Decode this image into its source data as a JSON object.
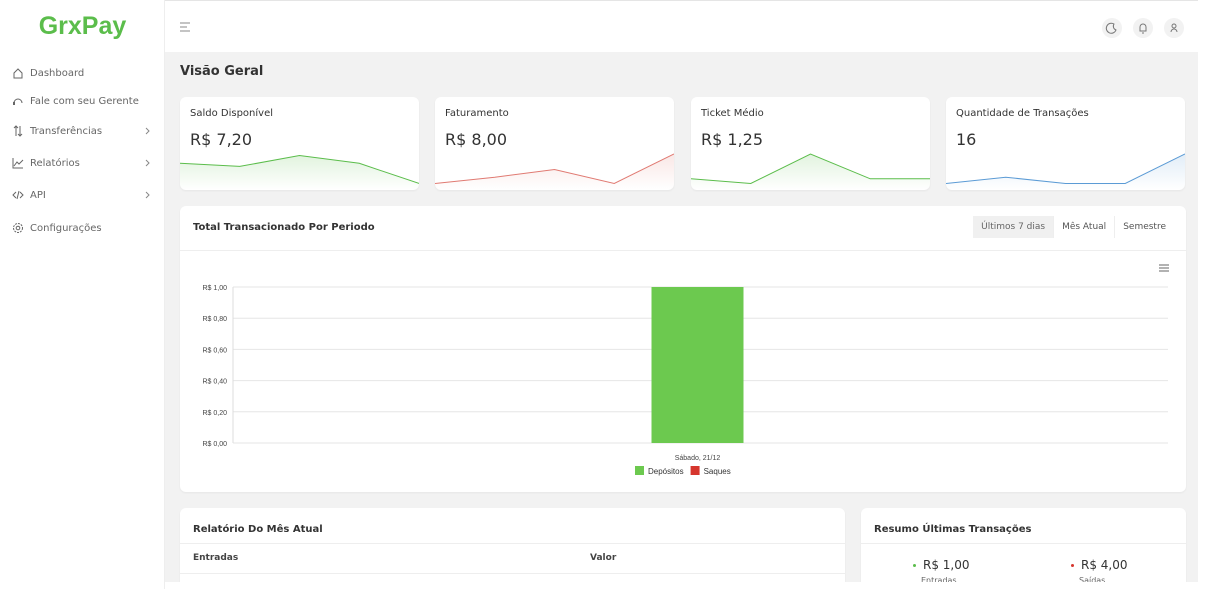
{
  "brand": "GrxPay",
  "nav": [
    "Dashboard",
    "Fale com seu Gerente",
    "Transferências",
    "Relatórios",
    "API",
    "Configurações"
  ],
  "page_title": "Visão Geral",
  "cards": [
    {
      "label": "Saldo Disponível",
      "value": "R$ 7,20",
      "color": "#5bbd4b",
      "trend": [
        0.7,
        0.6,
        0.95,
        0.7,
        0.05
      ]
    },
    {
      "label": "Faturamento",
      "value": "R$ 8,00",
      "color": "#e07a72",
      "trend": [
        0.05,
        0.25,
        0.5,
        0.05,
        1
      ]
    },
    {
      "label": "Ticket Médio",
      "value": "R$ 1,25",
      "color": "#5bbd4b",
      "trend": [
        0.2,
        0.05,
        1,
        0.2,
        0.2
      ]
    },
    {
      "label": "Quantidade de Transações",
      "value": "16",
      "color": "#5b9bd5",
      "trend": [
        0.05,
        0.25,
        0.05,
        0.05,
        1
      ]
    }
  ],
  "chart_panel": {
    "title": "Total Transacionado Por Periodo",
    "tabs": [
      "Últimos 7 dias",
      "Mês Atual",
      "Semestre"
    ]
  },
  "chart_data": {
    "type": "bar",
    "categories": [
      "Sábado, 21/12"
    ],
    "series": [
      {
        "name": "Depósitos",
        "color": "#6cc94f",
        "values": [
          1
        ]
      },
      {
        "name": "Saques",
        "color": "#d6362e",
        "values": [
          0
        ]
      }
    ],
    "ylim": [
      0,
      1
    ],
    "yticks": [
      {
        "value": 0,
        "label": "R$ 0,00"
      },
      {
        "value": 0.2,
        "label": "R$ 0,20"
      },
      {
        "value": 0.4,
        "label": "R$ 0,40"
      },
      {
        "value": 0.6,
        "label": "R$ 0,60"
      },
      {
        "value": 0.8,
        "label": "R$ 0,80"
      },
      {
        "value": 1,
        "label": "R$ 1,00"
      }
    ],
    "grid": true,
    "legend": "bottom"
  },
  "report": {
    "title": "Relatório Do Mês Atual",
    "columns": [
      "Entradas",
      "Valor"
    ]
  },
  "summary": {
    "title": "Resumo Últimas Transações",
    "items": [
      {
        "value": "R$ 1,00",
        "label": "Entradas",
        "color": "#5bbd4b"
      },
      {
        "value": "R$ 4,00",
        "label": "Saídas",
        "color": "#d6362e"
      }
    ]
  }
}
